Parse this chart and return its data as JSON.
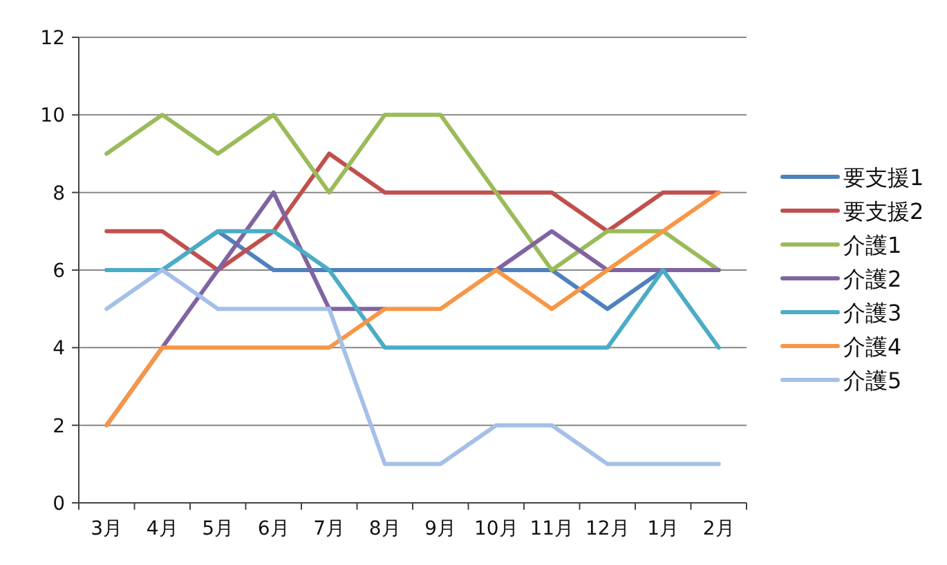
{
  "chart_data": {
    "type": "line",
    "categories": [
      "3月",
      "4月",
      "5月",
      "6月",
      "7月",
      "8月",
      "9月",
      "10月",
      "11月",
      "12月",
      "1月",
      "2月"
    ],
    "ylim": [
      0,
      12
    ],
    "yticks": [
      0,
      2,
      4,
      6,
      8,
      10,
      12
    ],
    "grid": "y",
    "legend": "right",
    "marker": "none",
    "series": [
      {
        "name": "要支援1",
        "color": "#4f81bd",
        "values": [
          6,
          6,
          7,
          6,
          6,
          6,
          6,
          6,
          6,
          5,
          6,
          6
        ]
      },
      {
        "name": "要支援2",
        "color": "#c0504d",
        "values": [
          7,
          7,
          6,
          7,
          9,
          8,
          8,
          8,
          8,
          7,
          8,
          8
        ]
      },
      {
        "name": "介護1",
        "color": "#9bbb59",
        "values": [
          9,
          10,
          9,
          10,
          8,
          10,
          10,
          8,
          6,
          7,
          7,
          6
        ]
      },
      {
        "name": "介護2",
        "color": "#8064a2",
        "values": [
          2,
          4,
          6,
          8,
          5,
          5,
          null,
          6,
          7,
          6,
          6,
          6
        ]
      },
      {
        "name": "介護3",
        "color": "#4bacc6",
        "values": [
          6,
          6,
          7,
          7,
          6,
          4,
          4,
          4,
          4,
          4,
          6,
          4
        ]
      },
      {
        "name": "介護4",
        "color": "#f79646",
        "values": [
          2,
          4,
          4,
          4,
          4,
          5,
          5,
          6,
          5,
          6,
          7,
          8
        ]
      },
      {
        "name": "介護5",
        "color": "#a5c0e8",
        "values": [
          5,
          6,
          5,
          5,
          5,
          1,
          1,
          2,
          2,
          1,
          1,
          1
        ]
      }
    ]
  }
}
